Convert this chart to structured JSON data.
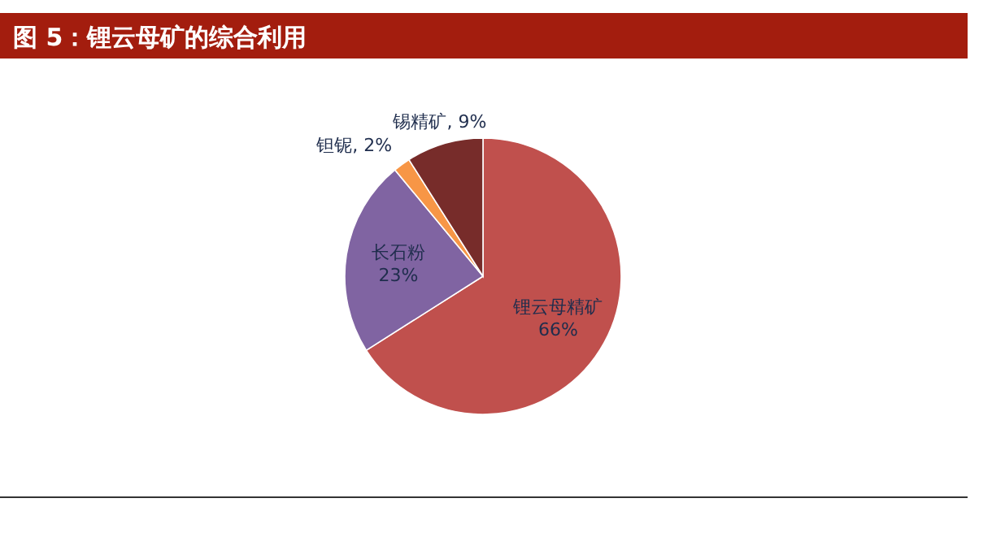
{
  "chart_data": {
    "type": "pie",
    "title": "图 5：锂云母矿的综合利用",
    "categories": [
      "锂云母精矿",
      "长石粉",
      "钽铌",
      "锡精矿"
    ],
    "values": [
      66,
      23,
      2,
      9
    ],
    "value_labels": [
      "66%",
      "23%",
      "2%",
      "9%"
    ],
    "colors": [
      "#c0504d",
      "#8064a2",
      "#f79646",
      "#772c2a"
    ],
    "legend": false
  }
}
